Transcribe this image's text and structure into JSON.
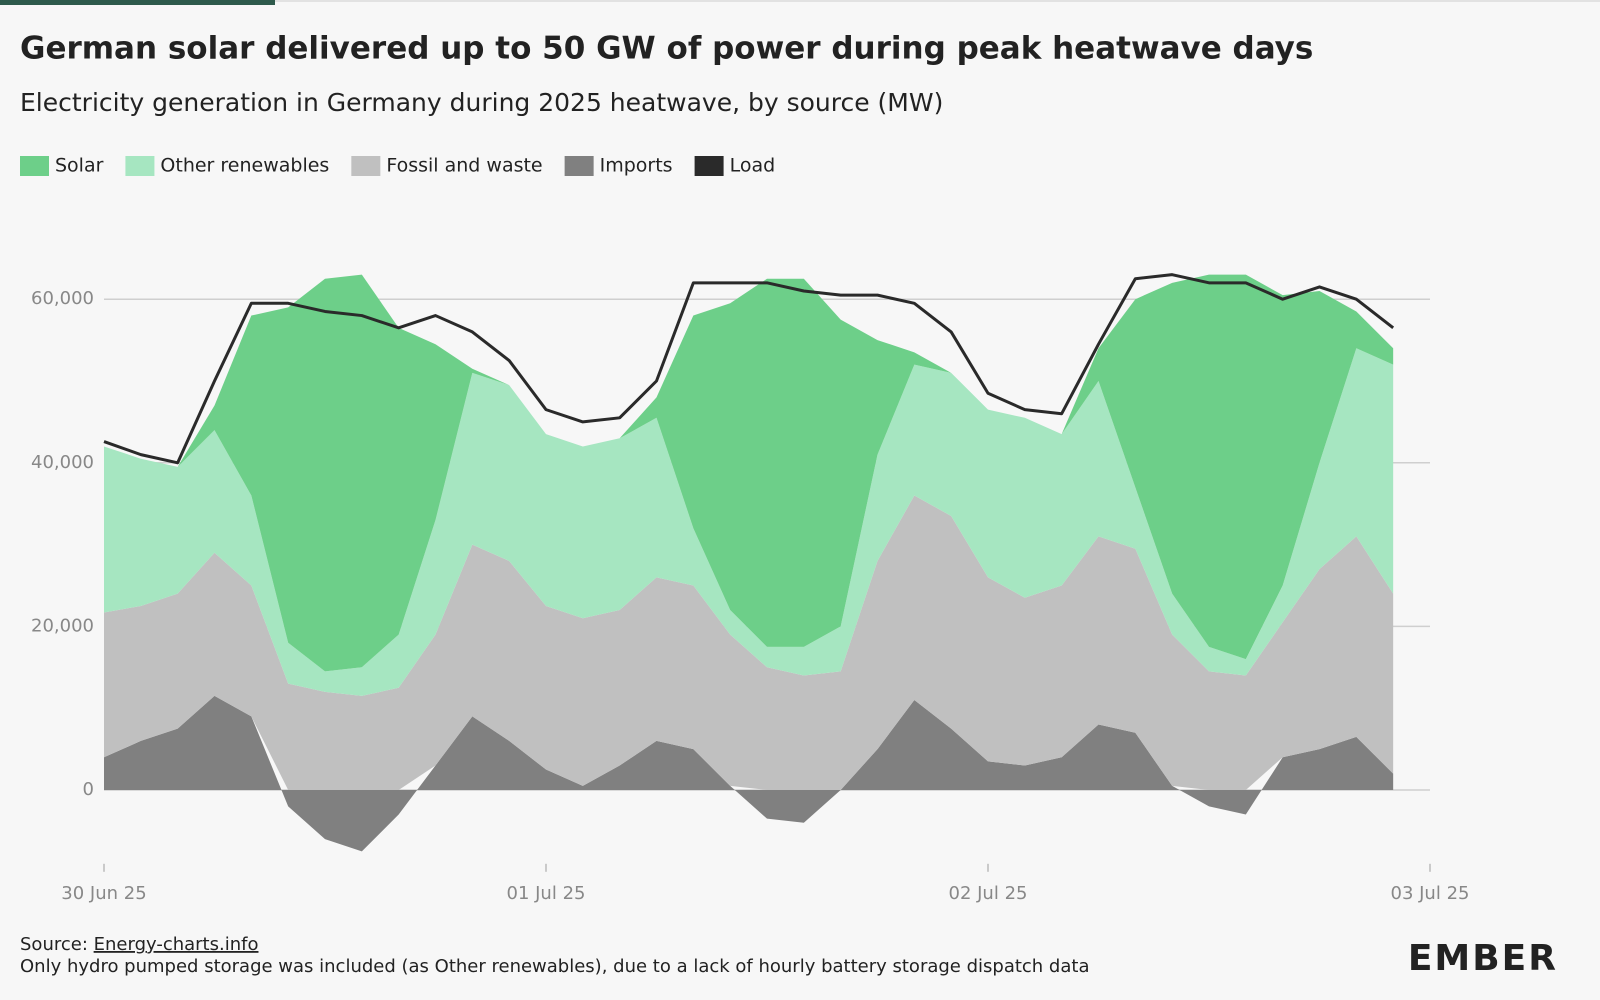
{
  "chart_data": {
    "type": "stacked_area",
    "title": "German solar delivered up to 50 GW of power during peak heatwave days",
    "subtitle": "Electricity generation in Germany during 2025 heatwave, by source (MW)",
    "categories": [
      "30 Jun 25",
      null,
      null,
      null,
      null,
      null,
      null,
      null,
      null,
      null,
      null,
      null,
      "01 Jul 25",
      null,
      null,
      null,
      null,
      null,
      null,
      null,
      null,
      null,
      null,
      null,
      "02 Jul 25",
      null,
      null,
      null,
      null,
      null,
      null,
      null,
      null,
      null,
      null,
      null,
      "03 Jul 25"
    ],
    "series": [
      {
        "name": "Imports",
        "color": "#808080",
        "values": [
          4000,
          6000,
          7500,
          11500,
          9000,
          -2000,
          -6000,
          -7500,
          -3000,
          3000,
          9000,
          6000,
          2500,
          500,
          3000,
          6000,
          5000,
          500,
          -3500,
          -4000,
          0,
          5000,
          11000,
          7500,
          3500,
          3000,
          4000,
          8000,
          7000,
          500,
          -2000,
          -3000,
          4000,
          5000,
          6500,
          2000,
          null
        ]
      },
      {
        "name": "Fossil and waste",
        "color": "#c0c0c0",
        "values": [
          17700,
          16500,
          16500,
          17500,
          16000,
          13000,
          12000,
          11500,
          12500,
          16000,
          21000,
          22000,
          20000,
          20500,
          19000,
          20000,
          20000,
          18500,
          15000,
          14000,
          14500,
          23000,
          25000,
          26000,
          22500,
          20500,
          21000,
          23000,
          22500,
          18500,
          14500,
          14000,
          16500,
          22000,
          24500,
          22000,
          null
        ]
      },
      {
        "name": "Other renewables",
        "color": "#a6e6c1",
        "values": [
          20300,
          18000,
          15500,
          15000,
          11000,
          5000,
          2500,
          3500,
          6500,
          14000,
          21000,
          21500,
          21000,
          21000,
          21000,
          19500,
          7000,
          3000,
          2500,
          3500,
          5500,
          13000,
          16000,
          17500,
          20500,
          22000,
          18500,
          19000,
          7500,
          5000,
          3000,
          2000,
          4500,
          13000,
          23000,
          28000,
          null
        ]
      },
      {
        "name": "Solar",
        "color": "#6dcf89",
        "values": [
          0,
          0,
          0,
          3000,
          22000,
          41000,
          48000,
          48000,
          37500,
          21500,
          500,
          0,
          0,
          0,
          0,
          2500,
          26000,
          37500,
          45000,
          45000,
          37500,
          14000,
          1500,
          0,
          0,
          0,
          0,
          4000,
          23000,
          38000,
          45500,
          47000,
          35500,
          21000,
          4500,
          2000,
          null
        ]
      }
    ],
    "load": {
      "name": "Load",
      "color": "#2a2a2a",
      "values": [
        42600,
        41000,
        40000,
        50000,
        59500,
        59500,
        58500,
        58000,
        56500,
        58000,
        56000,
        52500,
        46500,
        45000,
        45500,
        50000,
        62000,
        62000,
        62000,
        61000,
        60500,
        60500,
        59500,
        56000,
        48500,
        46500,
        46000,
        54500,
        62500,
        63000,
        62000,
        62000,
        60000,
        61500,
        60000,
        56500,
        null
      ]
    },
    "legend_order": [
      3,
      2,
      1,
      0
    ],
    "ylim": [
      -10000,
      70000
    ],
    "yticks": [
      0,
      {
        "value": 20000,
        "label": "20,000"
      },
      {
        "value": 40000,
        "label": "40,000"
      },
      {
        "value": 60000,
        "label": "60,000"
      }
    ],
    "grid": true,
    "source_label": "Source:",
    "source_link": "Energy-charts.info",
    "note": "Only hydro pumped storage was included (as Other renewables), due to a lack of hourly battery storage dispatch data",
    "brand": "EMBER"
  }
}
